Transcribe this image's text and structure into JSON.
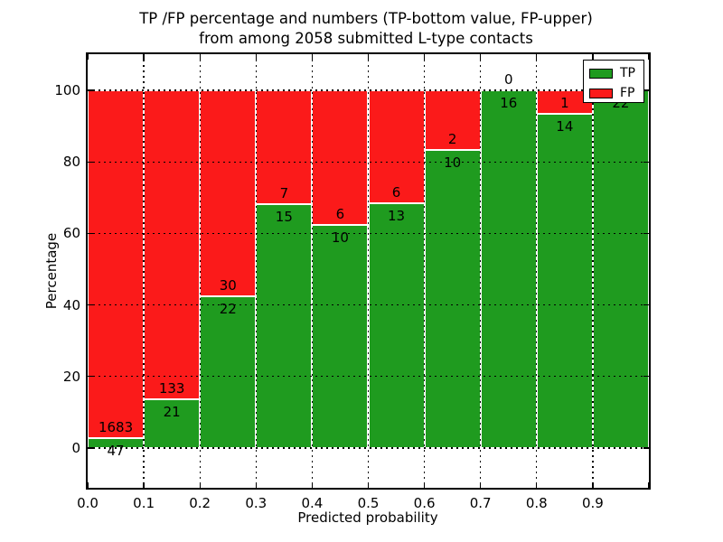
{
  "title": {
    "line1": "TP /FP percentage and numbers (TP-bottom value, FP-upper)",
    "line2": "from among 2058 submitted L-type contacts"
  },
  "chart_data": {
    "type": "bar",
    "stacked": true,
    "normalized": "each bin stacked to 100%",
    "title": "TP /FP percentage and numbers (TP-bottom value, FP-upper) from among 2058 submitted L-type contacts",
    "xlabel": "Predicted probability",
    "ylabel": "Percentage",
    "xlim": [
      0.0,
      1.0
    ],
    "ylim": [
      -11,
      110
    ],
    "x_bin_edges": [
      0.0,
      0.1,
      0.2,
      0.3,
      0.4,
      0.5,
      0.6,
      0.7,
      0.8,
      0.9,
      1.0
    ],
    "x_tick_labels": [
      "0.0",
      "0.1",
      "0.2",
      "0.3",
      "0.4",
      "0.5",
      "0.6",
      "0.7",
      "0.8",
      "0.9"
    ],
    "y_tick_values": [
      0,
      20,
      40,
      60,
      80,
      100
    ],
    "grid": "dotted black, both axes, drawn over bars",
    "legend_position": "upper right",
    "total_contacts": 2058,
    "series": [
      {
        "name": "TP",
        "color": "#1f9b1f",
        "counts": [
          47,
          21,
          22,
          15,
          10,
          13,
          10,
          16,
          14,
          22
        ]
      },
      {
        "name": "FP",
        "color": "#fb1a1a",
        "counts": [
          1683,
          133,
          30,
          7,
          6,
          6,
          2,
          0,
          1,
          0
        ]
      }
    ],
    "tp_percent_of_bin": [
      2.7,
      13.6,
      42.3,
      68.2,
      62.5,
      68.4,
      83.3,
      100.0,
      93.3,
      100.0
    ],
    "frame_color": "#000000",
    "background_color": "#ffffff"
  }
}
